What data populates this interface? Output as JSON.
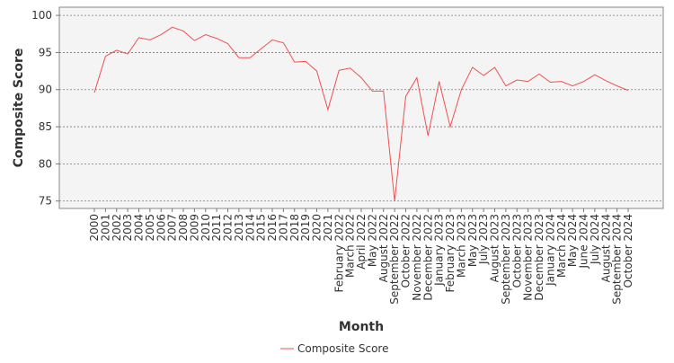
{
  "chart_data": {
    "type": "line",
    "x_label": "Month",
    "y_label": "Composite Score",
    "categories": [
      "2000",
      "2001",
      "2002",
      "2003",
      "2004",
      "2005",
      "2006",
      "2007",
      "2008",
      "2009",
      "2010",
      "2011",
      "2012",
      "2013",
      "2014",
      "2015",
      "2016",
      "2017",
      "2018",
      "2019",
      "2020",
      "2021",
      "February 2022",
      "March 2022",
      "April 2022",
      "May 2022",
      "August 2022",
      "September 2022",
      "October 2022",
      "November 2022",
      "December 2022",
      "January 2023",
      "February 2023",
      "March 2023",
      "May 2023",
      "July 2023",
      "August 2023",
      "September 2023",
      "October 2023",
      "November 2023",
      "December 2023",
      "January 2024",
      "March 2024",
      "May 2024",
      "June 2024",
      "July 2024",
      "August 2024",
      "September 2024",
      "October 2024"
    ],
    "series": [
      {
        "name": "Composite Score",
        "color": "#f05050",
        "values": [
          89.6,
          94.5,
          95.3,
          94.8,
          97.0,
          96.7,
          97.4,
          98.4,
          97.9,
          96.6,
          97.4,
          96.9,
          96.2,
          94.3,
          94.3,
          95.5,
          96.7,
          96.3,
          93.7,
          93.8,
          92.5,
          87.3,
          92.6,
          92.9,
          91.6,
          89.8,
          89.8,
          75.0,
          89.1,
          91.6,
          83.8,
          91.1,
          85.0,
          90.0,
          93.0,
          91.9,
          93.0,
          90.5,
          91.3,
          91.1,
          92.1,
          91.0,
          91.1,
          90.5,
          91.1,
          92.0,
          91.2,
          90.5,
          89.9
        ]
      }
    ],
    "ylim": [
      74,
      101.1
    ],
    "yticks": [
      75,
      80,
      85,
      90,
      95,
      100
    ],
    "grid": true,
    "legend": "bottom"
  }
}
